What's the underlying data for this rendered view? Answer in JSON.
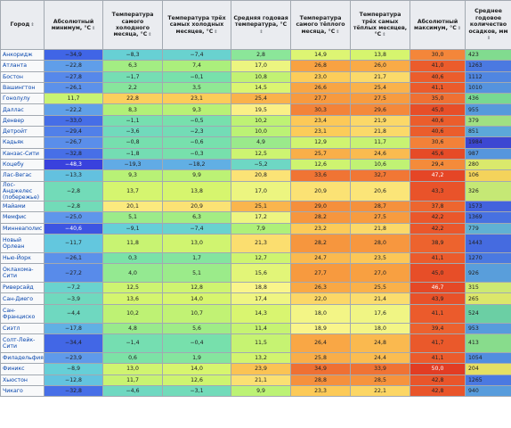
{
  "headers": [
    "Город",
    "Абсолютный минимум, °C",
    "Температура самого холодного месяца, °C",
    "Температура трёх самых холодных месяцев, °C",
    "Средняя годовая температура, °C",
    "Температура самого тёплого месяца, °C",
    "Температура трёх самых тёплых месяцев, °C",
    "Абсолютный максимум, °C",
    "Среднее годовое количество осадков, мм"
  ],
  "rows": [
    {
      "city": "Анкоридж",
      "tall": false,
      "cells": [
        "−34,9",
        "−8,3",
        "−7,4",
        "2,8",
        "14,9",
        "13,8",
        "30,0",
        "423"
      ]
    },
    {
      "city": "Атланта",
      "tall": false,
      "cells": [
        "−22,8",
        "6,3",
        "7,4",
        "17,0",
        "26,8",
        "26,0",
        "41,0",
        "1263"
      ]
    },
    {
      "city": "Бостон",
      "tall": false,
      "cells": [
        "−27,8",
        "−1,7",
        "−0,1",
        "10,8",
        "23,0",
        "21,7",
        "40,6",
        "1112"
      ]
    },
    {
      "city": "Вашингтон",
      "tall": false,
      "cells": [
        "−26,1",
        "2,2",
        "3,5",
        "14,5",
        "26,6",
        "25,4",
        "41,1",
        "1010"
      ]
    },
    {
      "city": "Гонолулу",
      "tall": false,
      "cells": [
        "11,7",
        "22,8",
        "23,1",
        "25,4",
        "27,7",
        "27,5",
        "35,0",
        "436"
      ]
    },
    {
      "city": "Даллас",
      "tall": false,
      "cells": [
        "−22,2",
        "8,3",
        "9,3",
        "19,5",
        "30,3",
        "29,6",
        "45,0",
        "955"
      ]
    },
    {
      "city": "Денвер",
      "tall": false,
      "cells": [
        "−33,0",
        "−1,1",
        "−0,5",
        "10,2",
        "23,4",
        "21,9",
        "40,6",
        "379"
      ]
    },
    {
      "city": "Детройт",
      "tall": false,
      "cells": [
        "−29,4",
        "−3,6",
        "−2,3",
        "10,0",
        "23,1",
        "21,8",
        "40,6",
        "851"
      ]
    },
    {
      "city": "Кадьяк",
      "tall": false,
      "cells": [
        "−26,7",
        "−0,8",
        "−0,6",
        "4,9",
        "12,9",
        "11,7",
        "30,6",
        "1984"
      ]
    },
    {
      "city": "Канзас-Сити",
      "tall": false,
      "cells": [
        "−32,8",
        "−1,8",
        "−0,3",
        "12,5",
        "25,7",
        "24,6",
        "45,6",
        "987"
      ]
    },
    {
      "city": "Коцебу",
      "tall": false,
      "cells": [
        "−48,3",
        "−19,3",
        "−18,2",
        "−5,2",
        "12,6",
        "10,6",
        "29,4",
        "280"
      ]
    },
    {
      "city": "Лас-Вегас",
      "tall": false,
      "cells": [
        "−13,3",
        "9,3",
        "9,9",
        "20,8",
        "33,6",
        "32,7",
        "47,2",
        "106"
      ]
    },
    {
      "city": "Лос-Анджелес (побережье)",
      "tall": true,
      "cells": [
        "−2,8",
        "13,7",
        "13,8",
        "17,0",
        "20,9",
        "20,6",
        "43,3",
        "326"
      ]
    },
    {
      "city": "Майами",
      "tall": false,
      "cells": [
        "−2,8",
        "20,1",
        "20,9",
        "25,1",
        "29,0",
        "28,7",
        "37,8",
        "1573"
      ]
    },
    {
      "city": "Мемфис",
      "tall": false,
      "cells": [
        "−25,0",
        "5,1",
        "6,3",
        "17,2",
        "28,2",
        "27,5",
        "42,2",
        "1369"
      ]
    },
    {
      "city": "Миннеаполис",
      "tall": false,
      "cells": [
        "−40,6",
        "−9,1",
        "−7,4",
        "7,9",
        "23,2",
        "21,8",
        "42,2",
        "779"
      ]
    },
    {
      "city": "Новый Орлеан",
      "tall": true,
      "cells": [
        "−11,7",
        "11,8",
        "13,0",
        "21,3",
        "28,2",
        "28,0",
        "38,9",
        "1443"
      ]
    },
    {
      "city": "Нью-Йорк",
      "tall": false,
      "cells": [
        "−26,1",
        "0,3",
        "1,7",
        "12,7",
        "24,7",
        "23,5",
        "41,1",
        "1270"
      ]
    },
    {
      "city": "Оклахома-Сити",
      "tall": true,
      "cells": [
        "−27,2",
        "4,0",
        "5,1",
        "15,6",
        "27,7",
        "27,0",
        "45,0",
        "926"
      ]
    },
    {
      "city": "Риверсайд",
      "tall": false,
      "cells": [
        "−7,2",
        "12,5",
        "12,8",
        "18,8",
        "26,3",
        "25,5",
        "46,7",
        "315"
      ]
    },
    {
      "city": "Сан-Диего",
      "tall": false,
      "cells": [
        "−3,9",
        "13,6",
        "14,0",
        "17,4",
        "22,0",
        "21,4",
        "43,9",
        "265"
      ]
    },
    {
      "city": "Сан-Франциско",
      "tall": true,
      "cells": [
        "−4,4",
        "10,2",
        "10,7",
        "14,3",
        "18,0",
        "17,6",
        "41,1",
        "524"
      ]
    },
    {
      "city": "Сиэтл",
      "tall": false,
      "cells": [
        "−17,8",
        "4,8",
        "5,6",
        "11,4",
        "18,9",
        "18,0",
        "39,4",
        "953"
      ]
    },
    {
      "city": "Солт-Лейк-Сити",
      "tall": true,
      "cells": [
        "−34,4",
        "−1,4",
        "−0,4",
        "11,5",
        "26,4",
        "24,8",
        "41,7",
        "413"
      ]
    },
    {
      "city": "Филадельфия",
      "tall": false,
      "cells": [
        "−23,9",
        "0,6",
        "1,9",
        "13,2",
        "25,8",
        "24,4",
        "41,1",
        "1054"
      ]
    },
    {
      "city": "Финикс",
      "tall": false,
      "cells": [
        "−8,9",
        "13,0",
        "14,0",
        "23,9",
        "34,9",
        "33,9",
        "50,0",
        "204"
      ]
    },
    {
      "city": "Хьюстон",
      "tall": false,
      "cells": [
        "−12,8",
        "11,7",
        "12,6",
        "21,1",
        "28,8",
        "28,5",
        "42,8",
        "1265"
      ]
    },
    {
      "city": "Чикаго",
      "tall": false,
      "cells": [
        "−32,8",
        "−4,6",
        "−3,1",
        "9,9",
        "23,3",
        "22,1",
        "42,8",
        "940"
      ]
    }
  ],
  "colors": {
    "header_bg": "#eaecf0",
    "city_bg": "#f8f9fa",
    "border": "#a2a9b1",
    "link": "#0645ad",
    "cold_deep": "#4040e0",
    "cold": "#6c9ce6",
    "cool": "#79e3b6",
    "mild": "#c8f07a",
    "yellow": "#f7f58c",
    "warm": "#fbc055",
    "hot": "#f48a35",
    "very_hot": "#e84a26"
  }
}
